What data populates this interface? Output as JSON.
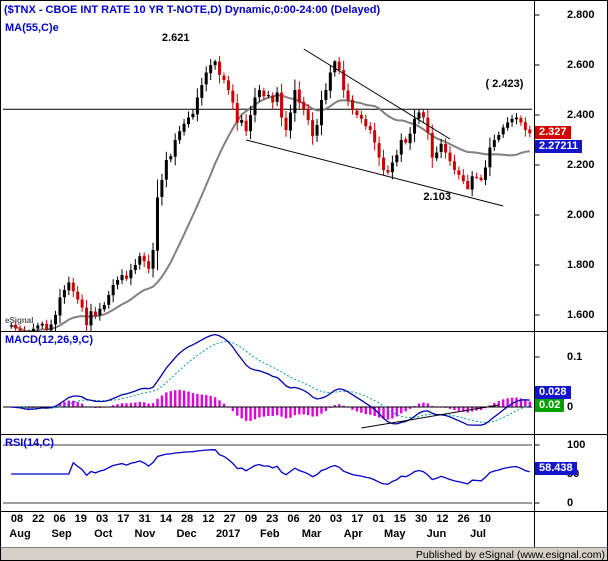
{
  "title": {
    "text": "($TNX - CBOE INT RATE 10 YR T-NOTE,D) Dynamic,0:00-24:00 (Delayed)"
  },
  "watermark": "eSignal",
  "footer": {
    "text": "Published by eSignal (www.esignal.com)"
  },
  "main_panel": {
    "ma_label": "MA(55,C)e",
    "axis_labels": [
      {
        "text": "2.800",
        "value": 2.8
      },
      {
        "text": "2.600",
        "value": 2.6
      },
      {
        "text": "2.400",
        "value": 2.4
      },
      {
        "text": "2.200",
        "value": 2.2
      },
      {
        "text": "2.000",
        "value": 2.0
      },
      {
        "text": "1.800",
        "value": 1.8
      },
      {
        "text": "1.600",
        "value": 1.6
      }
    ],
    "badges": [
      {
        "text": "2.327",
        "value": 2.327,
        "bg": "#d40000"
      },
      {
        "text": "2.27211",
        "value": 2.27211,
        "bg": "#1414cc"
      }
    ],
    "annotations": [
      {
        "text": "2.621",
        "bar": 34,
        "price": 2.705
      },
      {
        "text": "( 2.423)",
        "bar": 107,
        "price": 2.522
      },
      {
        "text": "2.103",
        "bar": 93,
        "price": 2.068
      }
    ],
    "horizontal_line_price": 2.423,
    "trendlines": [
      {
        "b1": 66,
        "p1": 2.664,
        "b2": 99,
        "p2": 2.304
      },
      {
        "b1": 53,
        "p1": 2.3,
        "b2": 111,
        "p2": 2.036
      }
    ]
  },
  "macd_panel": {
    "label": "MACD(12,26,9,C)",
    "axis_labels": [
      {
        "text": "0.1",
        "value": 0.1
      },
      {
        "text": "0",
        "value": 0
      }
    ],
    "badges": [
      {
        "text": "0.028",
        "value": 0.028,
        "bg": "#1414cc"
      },
      {
        "text": "0.02",
        "value": 0.02,
        "bg": "#00a000"
      }
    ],
    "trendline": {
      "b1": 79,
      "v1": -0.042,
      "b2": 110,
      "v2": 0.004
    },
    "params": {
      "fast": 12,
      "slow": 26,
      "signal": 9
    },
    "display_peak": 0.145
  },
  "rsi_panel": {
    "label": "RSI(14,C)",
    "axis_labels": [
      {
        "text": "100",
        "value": 100
      },
      {
        "text": "50",
        "value": 50
      },
      {
        "text": "0",
        "value": 0
      }
    ],
    "badges": [
      {
        "text": "58.438",
        "value": 58.438,
        "bg": "#1414cc"
      }
    ],
    "period": 14,
    "level_lines": [
      100,
      0
    ]
  },
  "x_axis": {
    "day_ticks": [
      "08",
      "22",
      "06",
      "19",
      "03",
      "17",
      "31",
      "14",
      "28",
      "12",
      "27",
      "09",
      "23",
      "06",
      "20",
      "03",
      "17",
      "01",
      "15",
      "30",
      "12",
      "26",
      "10"
    ],
    "month_labels": [
      "Aug",
      "Sep",
      "Oct",
      "Nov",
      "Dec",
      "2017",
      "Feb",
      "Mar",
      "Apr",
      "May",
      "Jun",
      "Jul"
    ]
  },
  "colors": {
    "accent_blue": "#0000cc",
    "candle_up": "#000000",
    "candle_down": "#cc0000",
    "ma_line": "#808080",
    "macd_line": "#0000aa",
    "macd_signal": "#00a0a0",
    "macd_hist": "#dd00dd",
    "rsi_line": "#0000cc",
    "line_black": "#000000",
    "footer_bg": "#d4d0c8"
  },
  "chart_data": {
    "type": "candlestick",
    "symbol": "$TNX - CBOE INT RATE 10 YR T-NOTE, Daily",
    "x_range": [
      "Aug 2016",
      "Jul 2017"
    ],
    "ylim": [
      1.536,
      2.776
    ],
    "close": [
      1.558,
      1.546,
      1.535,
      1.51,
      1.522,
      1.545,
      1.558,
      1.565,
      1.54,
      1.562,
      1.6,
      1.67,
      1.7,
      1.73,
      1.695,
      1.662,
      1.63,
      1.56,
      1.615,
      1.596,
      1.625,
      1.64,
      1.68,
      1.72,
      1.74,
      1.76,
      1.745,
      1.78,
      1.8,
      1.835,
      1.815,
      1.785,
      1.86,
      2.07,
      2.14,
      2.22,
      2.235,
      2.3,
      2.335,
      2.365,
      2.39,
      2.405,
      2.47,
      2.52,
      2.57,
      2.6,
      2.615,
      2.56,
      2.54,
      2.5,
      2.45,
      2.37,
      2.38,
      2.335,
      2.4,
      2.47,
      2.5,
      2.475,
      2.48,
      2.45,
      2.49,
      2.39,
      2.34,
      2.41,
      2.5,
      2.45,
      2.42,
      2.38,
      2.315,
      2.36,
      2.46,
      2.5,
      2.57,
      2.615,
      2.58,
      2.5,
      2.46,
      2.42,
      2.4,
      2.385,
      2.355,
      2.34,
      2.29,
      2.23,
      2.18,
      2.17,
      2.21,
      2.24,
      2.3,
      2.29,
      2.325,
      2.385,
      2.41,
      2.39,
      2.33,
      2.23,
      2.25,
      2.285,
      2.25,
      2.215,
      2.18,
      2.16,
      2.135,
      2.103,
      2.155,
      2.15,
      2.14,
      2.19,
      2.27,
      2.3,
      2.32,
      2.35,
      2.37,
      2.385,
      2.39,
      2.37,
      2.34,
      2.327
    ],
    "key_points": {
      "dec_high": 2.621,
      "mar_high": 2.615,
      "jun_low": 2.103,
      "last_price": 2.327,
      "ma55_last": 2.27211,
      "macd_last": 0.028,
      "macd_hist_last": 0.02,
      "rsi_last": 58.438,
      "resistance_level": 2.423
    }
  }
}
